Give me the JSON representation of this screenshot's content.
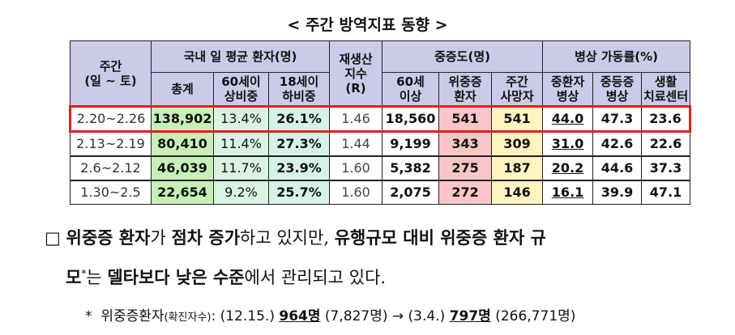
{
  "title": "< 주간 방역지표 동향 >",
  "table": {
    "header_groups": [
      [
        "주간",
        "(일 ~ 토)"
      ],
      [
        "국내 일 평균 환자(명)"
      ],
      [
        "재생산",
        "지수",
        "(R)"
      ],
      [
        "중증도(명)"
      ],
      [
        "병상 가동률(%)"
      ]
    ],
    "subheaders": [
      [
        "총계"
      ],
      [
        "60세이",
        "상비중"
      ],
      [
        "18세이",
        "하비중"
      ],
      [
        "60세",
        "이상"
      ],
      [
        "위중증",
        "환자"
      ],
      [
        "주간",
        "사망자"
      ],
      [
        "중환자",
        "병상"
      ],
      [
        "중등증",
        "병상"
      ],
      [
        "생활",
        "치료센터"
      ]
    ],
    "rows": [
      [
        "2.20~2.26",
        "138,902",
        "13.4%",
        "26.1%",
        "1.46",
        "18,560",
        "541",
        "541",
        "44.0",
        "47.3",
        "23.6"
      ],
      [
        "2.13~2.19",
        "80,410",
        "11.4%",
        "27.3%",
        "1.44",
        "9,199",
        "343",
        "309",
        "31.0",
        "42.6",
        "22.6"
      ],
      [
        "2.6~2.12",
        "46,039",
        "11.7%",
        "23.9%",
        "1.60",
        "5,382",
        "275",
        "187",
        "20.2",
        "44.6",
        "37.3"
      ],
      [
        "1.30~2.5",
        "22,654",
        "9.2%",
        "25.7%",
        "1.60",
        "2,075",
        "272",
        "146",
        "16.1",
        "39.9",
        "47.1"
      ]
    ]
  },
  "paragraph": {
    "bullet": "□",
    "lines": [
      [
        "위중증 환자",
        "가 ",
        "점차 증가",
        "하고 있지만, ",
        "유행규모 대비 위중증 환자 규"
      ],
      [
        "모",
        "*",
        "는 ",
        "델타보다 낮은 수준",
        "에서 관리되고 있다."
      ]
    ]
  },
  "footnote": [
    "*",
    "위중증환자",
    "(확진자수)",
    ": (12.15.) ",
    "964명",
    " (7,827명) → (3.4.) ",
    "797명",
    " (266,771명)"
  ]
}
